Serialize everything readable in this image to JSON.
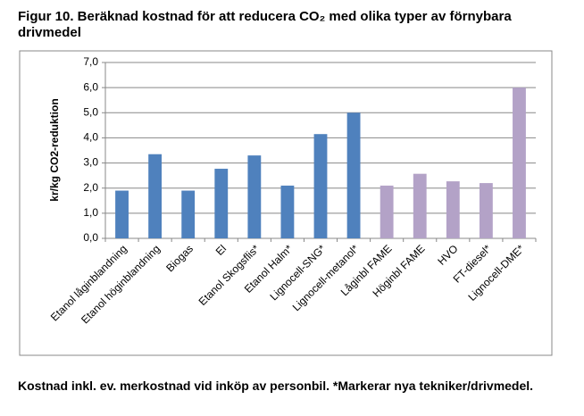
{
  "chart_data": {
    "type": "bar",
    "title": "Figur 10. Beräknad kostnad för att reducera CO₂ med olika typer av förnybara drivmedel",
    "y_label": "kr/kg CO2-reduktion",
    "note": "Kostnad inkl. ev. merkostnad vid inköp av personbil. *Markerar nya tekniker/drivmedel.",
    "categories": [
      "Etanol låginblandning",
      "Etanol höginblandning",
      "Biogas",
      "El",
      "Etanol Skogsflis*",
      "Etanol Halm*",
      "Lignocell-SNG*",
      "Lignocell-metanol*",
      "Låginbl FAME",
      "Höginbl FAME",
      "HVO",
      "FT-diesel*",
      "Lignocell-DME*"
    ],
    "values": [
      1.9,
      3.35,
      1.9,
      2.77,
      3.3,
      2.1,
      4.15,
      5.0,
      2.1,
      2.57,
      2.27,
      2.2,
      6.0
    ],
    "colors": [
      "#4f81bd",
      "#4f81bd",
      "#4f81bd",
      "#4f81bd",
      "#4f81bd",
      "#4f81bd",
      "#4f81bd",
      "#4f81bd",
      "#b3a2c7",
      "#b3a2c7",
      "#b3a2c7",
      "#b3a2c7",
      "#b3a2c7"
    ],
    "ylim": [
      0,
      7
    ],
    "yticks": [
      {
        "value": 0,
        "label": "0,0"
      },
      {
        "value": 1,
        "label": "1,0"
      },
      {
        "value": 2,
        "label": "2,0"
      },
      {
        "value": 3,
        "label": "3,0"
      },
      {
        "value": 4,
        "label": "4,0"
      },
      {
        "value": 5,
        "label": "5,0"
      },
      {
        "value": 6,
        "label": "6,0"
      },
      {
        "value": 7,
        "label": "7,0"
      }
    ],
    "grid": true
  }
}
